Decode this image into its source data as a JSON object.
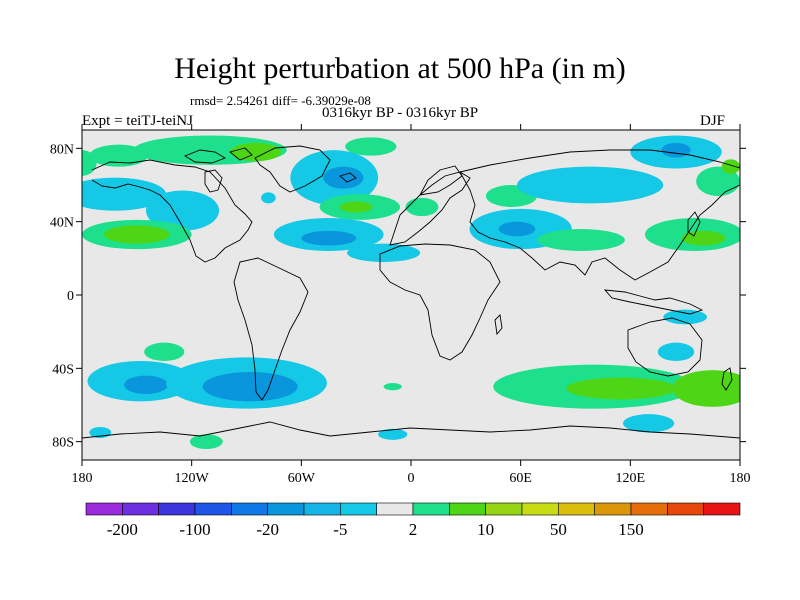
{
  "header": {
    "title": "Height perturbation at 500 hPa (in m)",
    "stats": "rmsd= 2.54261 diff= -6.39029e-08",
    "period": "0316kyr BP - 0316kyr BP",
    "experiment": "Expt = teiTJ-teiNJ",
    "season": "DJF"
  },
  "map": {
    "projection": "cylindrical-equidistant",
    "lon_range": [
      -180,
      180
    ],
    "lat_range": [
      -90,
      90
    ],
    "lat_ticks": [
      {
        "value": 80,
        "label": "80N"
      },
      {
        "value": 40,
        "label": "40N"
      },
      {
        "value": 0,
        "label": "0"
      },
      {
        "value": -40,
        "label": "40S"
      },
      {
        "value": -80,
        "label": "80S"
      }
    ],
    "lon_ticks": [
      {
        "value": -180,
        "label": "180"
      },
      {
        "value": -120,
        "label": "120W"
      },
      {
        "value": -60,
        "label": "60W"
      },
      {
        "value": 0,
        "label": "0"
      },
      {
        "value": 60,
        "label": "60E"
      },
      {
        "value": 120,
        "label": "120E"
      },
      {
        "value": 180,
        "label": "180"
      }
    ],
    "background_color": "#e8e8e8",
    "colors": {
      "neg_strong": "#0a96dc",
      "neg_weak": "#14c8e6",
      "pos_weak": "#1ee08c",
      "pos_strong": "#4ed616"
    },
    "regions": [
      {
        "lon": -180,
        "lat": 72,
        "rlon": 8,
        "rlat": 7,
        "level": "pos_weak"
      },
      {
        "lon": -160,
        "lat": 76,
        "rlon": 16,
        "rlat": 6,
        "level": "pos_weak"
      },
      {
        "lon": -110,
        "lat": 79,
        "rlon": 42,
        "rlat": 8,
        "level": "pos_weak"
      },
      {
        "lon": -85,
        "lat": 78,
        "rlon": 14,
        "rlat": 5,
        "level": "pos_strong"
      },
      {
        "lon": -162,
        "lat": 55,
        "rlon": 28,
        "rlat": 9,
        "level": "neg_weak"
      },
      {
        "lon": -125,
        "lat": 46,
        "rlon": 20,
        "rlat": 11,
        "level": "neg_weak"
      },
      {
        "lon": -150,
        "lat": 33,
        "rlon": 30,
        "rlat": 8,
        "level": "pos_weak"
      },
      {
        "lon": -150,
        "lat": 33,
        "rlon": 18,
        "rlat": 5,
        "level": "pos_strong"
      },
      {
        "lon": -78,
        "lat": 53,
        "rlon": 4,
        "rlat": 3,
        "level": "neg_weak"
      },
      {
        "lon": -45,
        "lat": 33,
        "rlon": 30,
        "rlat": 9,
        "level": "neg_weak"
      },
      {
        "lon": -45,
        "lat": 31,
        "rlon": 15,
        "rlat": 4,
        "level": "neg_strong"
      },
      {
        "lon": -42,
        "lat": 64,
        "rlon": 24,
        "rlat": 15,
        "level": "neg_weak"
      },
      {
        "lon": -37,
        "lat": 64,
        "rlon": 11,
        "rlat": 6,
        "level": "neg_strong"
      },
      {
        "lon": -22,
        "lat": 81,
        "rlon": 14,
        "rlat": 5,
        "level": "pos_weak"
      },
      {
        "lon": -28,
        "lat": 48,
        "rlon": 22,
        "rlat": 7,
        "level": "pos_weak"
      },
      {
        "lon": -30,
        "lat": 48,
        "rlon": 9,
        "rlat": 3,
        "level": "pos_strong"
      },
      {
        "lon": -15,
        "lat": 23,
        "rlon": 20,
        "rlat": 5,
        "level": "neg_weak"
      },
      {
        "lon": 6,
        "lat": 48,
        "rlon": 9,
        "rlat": 5,
        "level": "pos_weak"
      },
      {
        "lon": 60,
        "lat": 36,
        "rlon": 28,
        "rlat": 11,
        "level": "neg_weak"
      },
      {
        "lon": 58,
        "lat": 36,
        "rlon": 10,
        "rlat": 4,
        "level": "neg_strong"
      },
      {
        "lon": 55,
        "lat": 54,
        "rlon": 14,
        "rlat": 6,
        "level": "pos_weak"
      },
      {
        "lon": 93,
        "lat": 30,
        "rlon": 24,
        "rlat": 6,
        "level": "pos_weak"
      },
      {
        "lon": 98,
        "lat": 60,
        "rlon": 40,
        "rlat": 10,
        "level": "neg_weak"
      },
      {
        "lon": 145,
        "lat": 78,
        "rlon": 25,
        "rlat": 9,
        "level": "neg_weak"
      },
      {
        "lon": 145,
        "lat": 79,
        "rlon": 8,
        "rlat": 4,
        "level": "neg_strong"
      },
      {
        "lon": 168,
        "lat": 62,
        "rlon": 12,
        "rlat": 8,
        "level": "pos_weak"
      },
      {
        "lon": 175,
        "lat": 70,
        "rlon": 5,
        "rlat": 4,
        "level": "pos_strong"
      },
      {
        "lon": 155,
        "lat": 33,
        "rlon": 27,
        "rlat": 9,
        "level": "pos_weak"
      },
      {
        "lon": 160,
        "lat": 31,
        "rlon": 12,
        "rlat": 4,
        "level": "pos_strong"
      },
      {
        "lon": 150,
        "lat": -12,
        "rlon": 12,
        "rlat": 4,
        "level": "neg_weak"
      },
      {
        "lon": -135,
        "lat": -31,
        "rlon": 11,
        "rlat": 5,
        "level": "pos_weak"
      },
      {
        "lon": -148,
        "lat": -47,
        "rlon": 29,
        "rlat": 11,
        "level": "neg_weak"
      },
      {
        "lon": -145,
        "lat": -49,
        "rlon": 12,
        "rlat": 5,
        "level": "neg_strong"
      },
      {
        "lon": -90,
        "lat": -48,
        "rlon": 44,
        "rlat": 14,
        "level": "neg_weak"
      },
      {
        "lon": -88,
        "lat": -50,
        "rlon": 26,
        "rlat": 8,
        "level": "neg_strong"
      },
      {
        "lon": -170,
        "lat": -75,
        "rlon": 6,
        "rlat": 3,
        "level": "neg_weak"
      },
      {
        "lon": -112,
        "lat": -80,
        "rlon": 9,
        "rlat": 4,
        "level": "pos_weak"
      },
      {
        "lon": -10,
        "lat": -50,
        "rlon": 5,
        "rlat": 2,
        "level": "pos_weak"
      },
      {
        "lon": -10,
        "lat": -76,
        "rlon": 8,
        "rlat": 3,
        "level": "neg_weak"
      },
      {
        "lon": 100,
        "lat": -50,
        "rlon": 55,
        "rlat": 12,
        "level": "pos_weak"
      },
      {
        "lon": 115,
        "lat": -51,
        "rlon": 30,
        "rlat": 6,
        "level": "pos_strong"
      },
      {
        "lon": 165,
        "lat": -51,
        "rlon": 22,
        "rlat": 10,
        "level": "pos_strong"
      },
      {
        "lon": 145,
        "lat": -31,
        "rlon": 10,
        "rlat": 5,
        "level": "neg_weak"
      },
      {
        "lon": 130,
        "lat": -70,
        "rlon": 14,
        "rlat": 5,
        "level": "neg_weak"
      }
    ]
  },
  "colorbar": {
    "colors": [
      "#9b2bdc",
      "#6e2fe0",
      "#3c35de",
      "#1e55e6",
      "#0f78e6",
      "#0a96dc",
      "#14b4e6",
      "#14c8e6",
      "#e8e8e8",
      "#1ee08c",
      "#4ed616",
      "#96d414",
      "#c8dc14",
      "#dcbe0a",
      "#dc960a",
      "#e66e0a",
      "#e6460a",
      "#e61414"
    ],
    "labels": [
      "-200",
      "-100",
      "-20",
      "-5",
      "2",
      "10",
      "50",
      "150"
    ]
  }
}
